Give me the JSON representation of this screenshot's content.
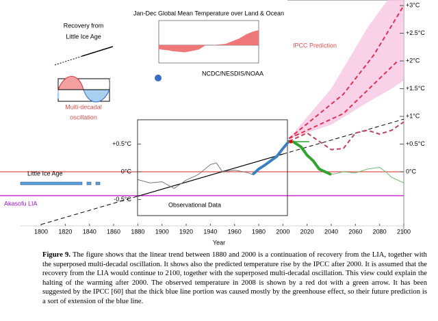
{
  "chart_data": {
    "type": "line",
    "x_label": "Year",
    "xlim": [
      1766,
      2100
    ],
    "ylim": [
      -1,
      3.1
    ],
    "xticks": [
      1800,
      1820,
      1840,
      1860,
      1880,
      1900,
      1920,
      1940,
      1960,
      1980,
      2000,
      2020,
      2040,
      2060,
      2080,
      2100
    ],
    "yticks": [
      {
        "value": 3,
        "label": "+3°C"
      },
      {
        "value": 2.5,
        "label": "+2.5°C"
      },
      {
        "value": 2,
        "label": "+2°C"
      },
      {
        "value": 1.5,
        "label": "+1.5°C"
      },
      {
        "value": 1,
        "label": "+1°C"
      },
      {
        "value": 0.5,
        "label": "+0.5°C"
      },
      {
        "value": 0,
        "label": "0°C"
      }
    ],
    "yticks_inner": [
      {
        "value": 0.5,
        "label": "+0.5°C"
      },
      {
        "value": 0,
        "label": "0°C"
      },
      {
        "value": -0.5,
        "label": "-0.5°C"
      }
    ],
    "hlines": [
      {
        "value": 0,
        "color": "#e05050"
      },
      {
        "value": -0.43,
        "color": "#d000d0"
      }
    ],
    "band": {
      "color": "#f7c6e4",
      "x": [
        2005,
        2040,
        2070,
        2090,
        2100
      ],
      "upper": [
        0.6,
        1.5,
        2.6,
        3.2,
        3.3
      ],
      "lower": [
        0.6,
        0.85,
        1.25,
        1.5,
        1.65
      ]
    },
    "series": [
      {
        "color": "#000000",
        "width": 1,
        "dash": true,
        "x": [
          1800,
          1880
        ],
        "values": [
          -0.95,
          -0.44
        ]
      },
      {
        "color": "#000000",
        "width": 1.2,
        "dash": false,
        "x": [
          1880,
          2000
        ],
        "values": [
          -0.44,
          0.32
        ]
      },
      {
        "color": "#000000",
        "width": 1,
        "dash": true,
        "x": [
          2000,
          2100
        ],
        "values": [
          0.32,
          0.95
        ]
      },
      {
        "color": "#777777",
        "width": 1,
        "dash": false,
        "x": [
          1880,
          1890,
          1900,
          1910,
          1920,
          1930,
          1940,
          1945,
          1950,
          1960,
          1970,
          1975
        ],
        "values": [
          -0.14,
          -0.2,
          -0.18,
          -0.3,
          -0.15,
          -0.05,
          0.13,
          0.16,
          0,
          0.03,
          -0.01,
          -0.05
        ]
      },
      {
        "color": "#3c7fc2",
        "width": 4,
        "dash": false,
        "x": [
          1975,
          1980,
          1985,
          1990,
          1995,
          2000,
          2005,
          2008
        ],
        "values": [
          -0.05,
          0.05,
          0.12,
          0.2,
          0.28,
          0.42,
          0.55,
          0.55
        ]
      },
      {
        "color": "#2ea32e",
        "width": 4,
        "dash": false,
        "x": [
          2008,
          2015,
          2020,
          2025,
          2030,
          2035,
          2040
        ],
        "values": [
          0.55,
          0.45,
          0.3,
          0.2,
          0.05,
          0,
          -0.05
        ]
      },
      {
        "color": "#6fbf6f",
        "width": 1,
        "dash": false,
        "x": [
          2040,
          2050,
          2060,
          2070,
          2080,
          2085,
          2090,
          2100
        ],
        "values": [
          -0.05,
          0,
          -0.02,
          0.05,
          0.08,
          0,
          -0.1,
          -0.2
        ]
      },
      {
        "color": "#c04060",
        "width": 2,
        "dash": true,
        "x": [
          2005,
          2020,
          2040,
          2050,
          2060,
          2070,
          2080,
          2090,
          2100
        ],
        "values": [
          0.55,
          0.7,
          0.4,
          0.42,
          0.7,
          0.75,
          0.68,
          0.75,
          0.9
        ]
      },
      {
        "color": "#e03050",
        "width": 2,
        "dash": true,
        "x": [
          2005,
          2050,
          2075,
          2100
        ],
        "values": [
          0.6,
          1.4,
          2.1,
          3.0
        ]
      },
      {
        "color": "#e03050",
        "width": 2,
        "dash": true,
        "x": [
          2005,
          2050,
          2095
        ],
        "values": [
          0.6,
          1.05,
          2.0
        ]
      }
    ]
  },
  "annotations": {
    "recovery": [
      "Recovery from",
      "Little  Ice Age"
    ],
    "oscillation": [
      "Multi-decadal",
      "oscillation"
    ],
    "ipcc": "IPCC Prediction",
    "lia": "Little Ice Age",
    "akasofu": "Akasofu LIA",
    "observational": "Observational Data"
  },
  "inset": {
    "title": "Jan-Dec Global Mean Temperature over Land & Ocean",
    "source": "NCDC/NESDIS/NOAA"
  },
  "caption": {
    "label": "Figure 9.",
    "text": "The figure shows that the linear trend between 1880 and 2000 is a continuation of recovery from the LIA, together with the superposed multi-decadal oscillation. It shows also the predicted temperature rise by the IPCC after 2000. It is assumed that the recovery from the LIA would continue to 2100, together with the superposed multi-decadal oscillation. This view could explain the halting of the warming after 2000. The observed temperature in 2008 is shown by a red dot with a green arrow. It has been suggested by the IPCC [60] that the thick blue line portion was caused mostly by the greenhouse effect, so their future prediction is a sort of extension of the blue line."
  }
}
